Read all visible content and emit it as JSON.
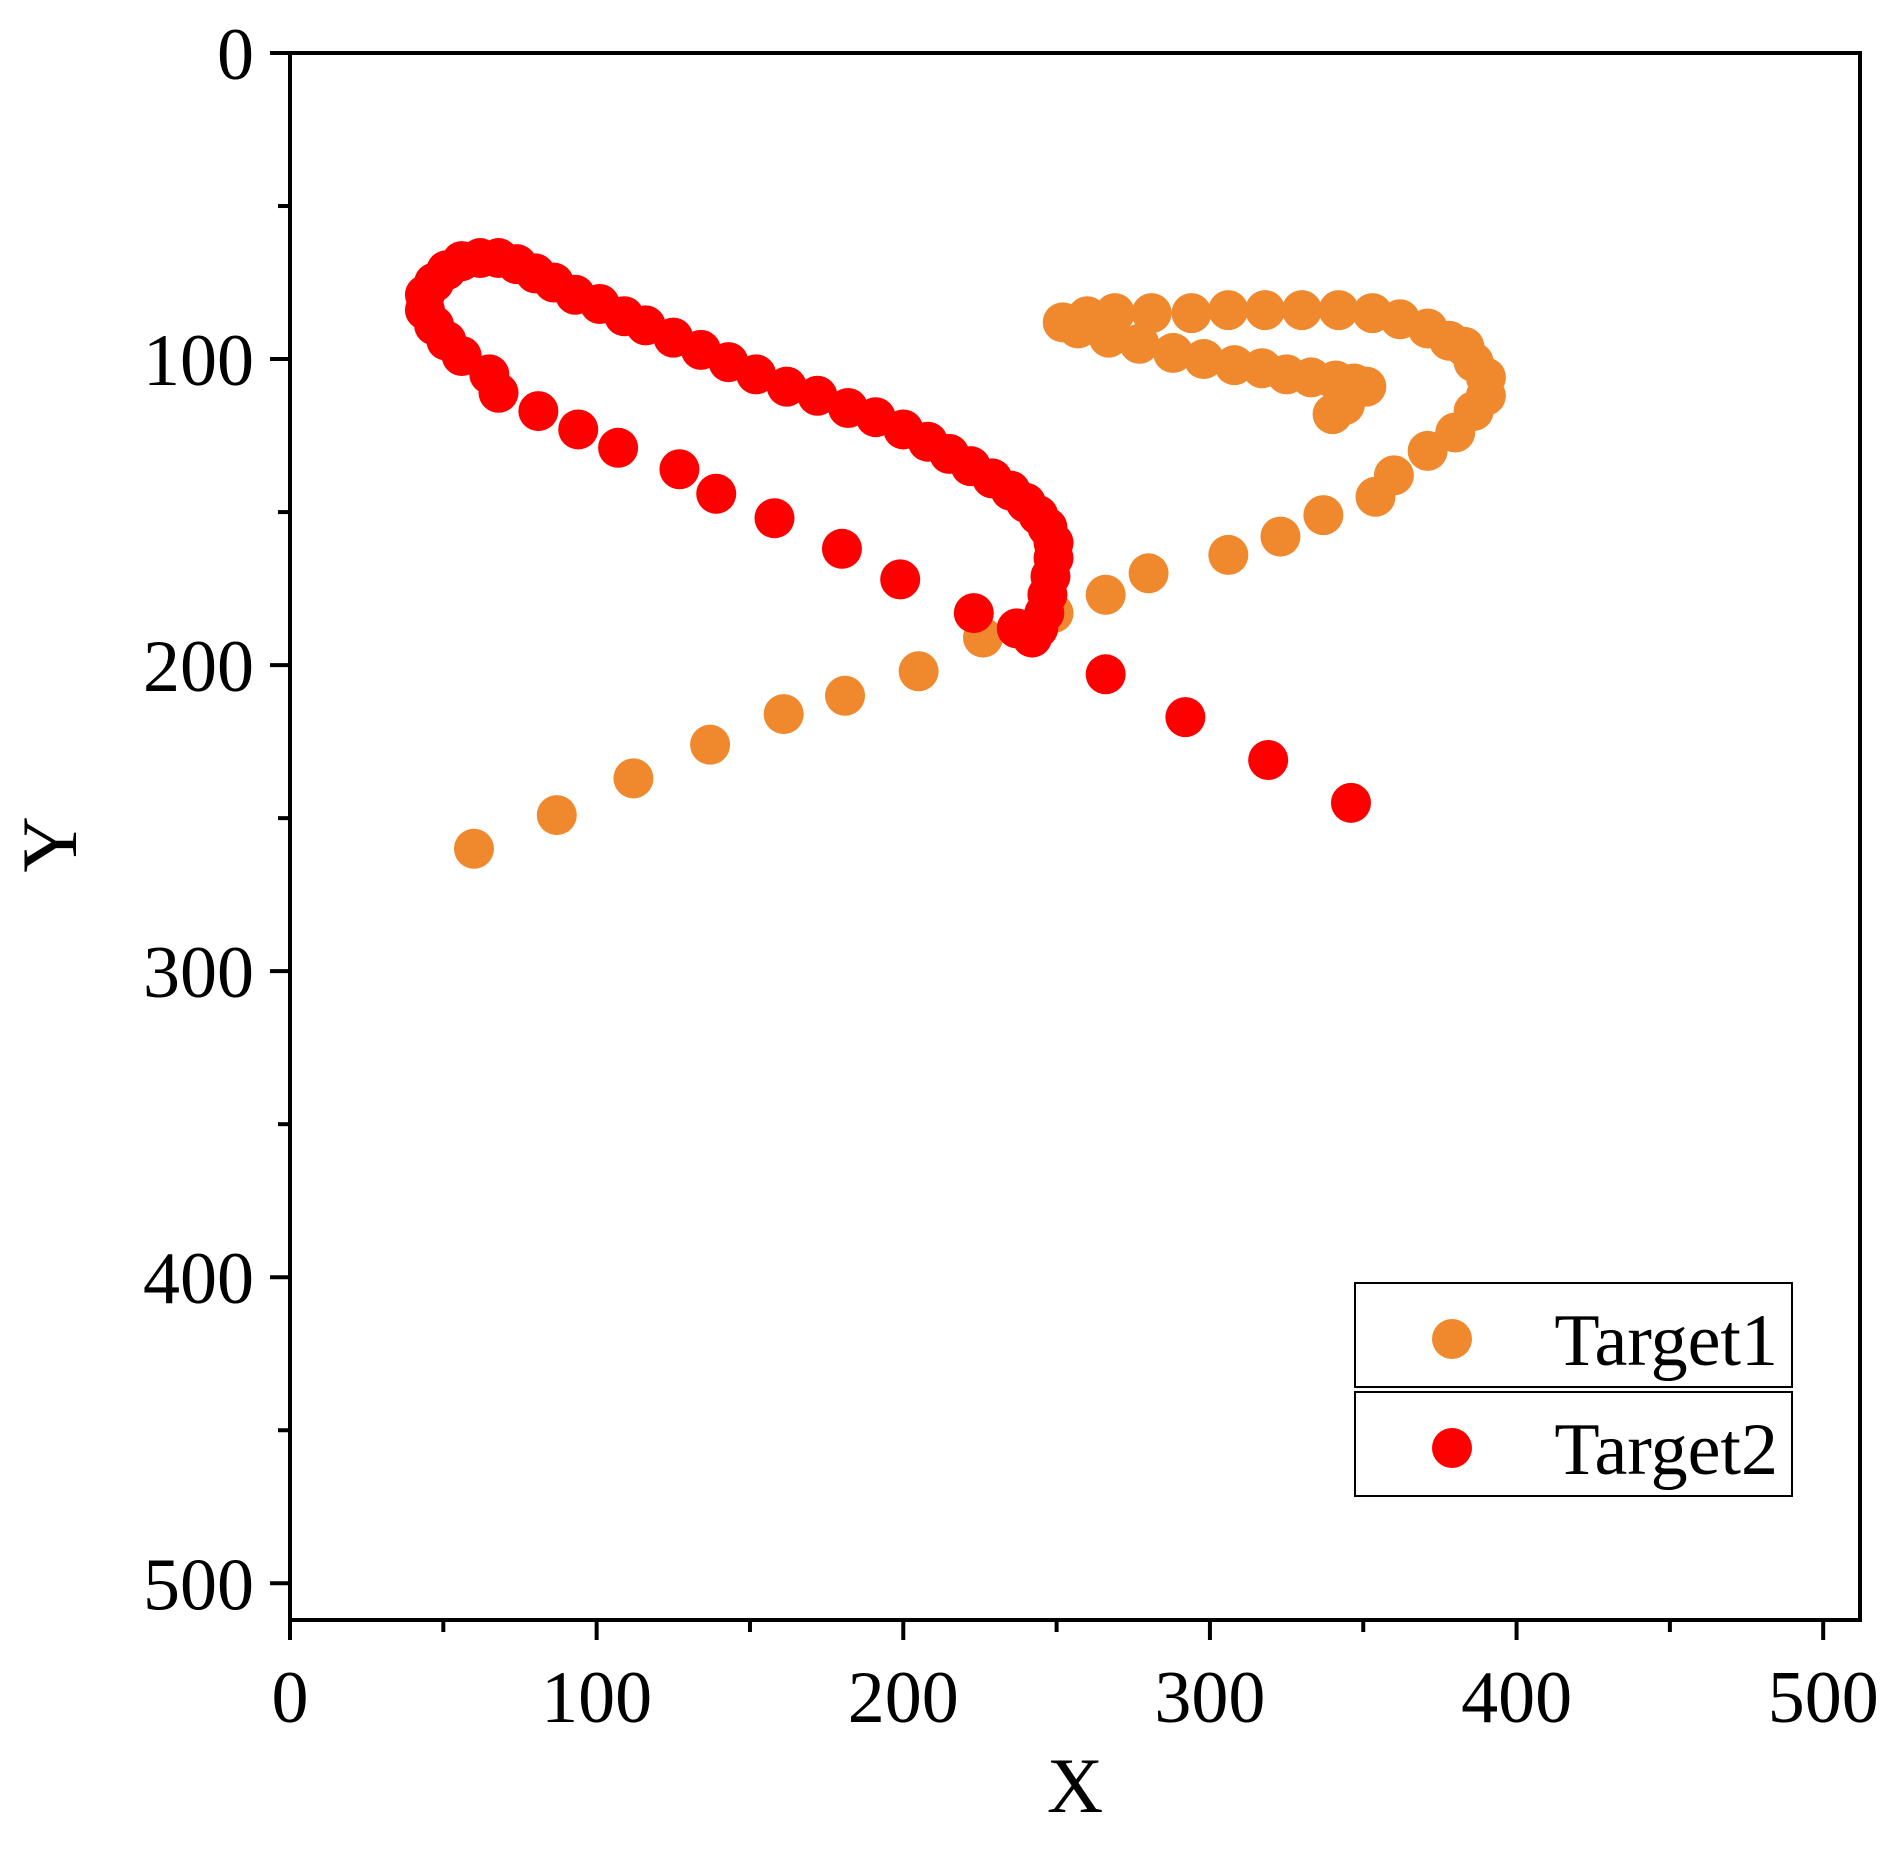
{
  "chart_data": {
    "type": "scatter",
    "xlabel": "X",
    "ylabel": "Y",
    "xlim": [
      0,
      512
    ],
    "ylim": [
      0,
      512
    ],
    "y_inverted": true,
    "x_ticks": [
      0,
      100,
      200,
      300,
      400,
      500
    ],
    "y_ticks": [
      0,
      100,
      200,
      300,
      400,
      500
    ],
    "grid": false,
    "legend_position": "bottom-right",
    "series": [
      {
        "name": "Target1",
        "color": "#F0882E",
        "points": [
          [
            60,
            260
          ],
          [
            87,
            249
          ],
          [
            112,
            237
          ],
          [
            137,
            226
          ],
          [
            161,
            216
          ],
          [
            181,
            210
          ],
          [
            205,
            202
          ],
          [
            226,
            191
          ],
          [
            249,
            183
          ],
          [
            266,
            177
          ],
          [
            280,
            170
          ],
          [
            306,
            164
          ],
          [
            323,
            158
          ],
          [
            337,
            151
          ],
          [
            354,
            145
          ],
          [
            360,
            138
          ],
          [
            371,
            130
          ],
          [
            380,
            124
          ],
          [
            386,
            117
          ],
          [
            390,
            112
          ],
          [
            390,
            106
          ],
          [
            386,
            101
          ],
          [
            383,
            96
          ],
          [
            378,
            94
          ],
          [
            371,
            90
          ],
          [
            362,
            87
          ],
          [
            353,
            85
          ],
          [
            342,
            84
          ],
          [
            330,
            84
          ],
          [
            318,
            84
          ],
          [
            306,
            84
          ],
          [
            294,
            85
          ],
          [
            281,
            85
          ],
          [
            269,
            85
          ],
          [
            260,
            86
          ],
          [
            252,
            88
          ],
          [
            257,
            90
          ],
          [
            267,
            93
          ],
          [
            277,
            95
          ],
          [
            288,
            98
          ],
          [
            298,
            100
          ],
          [
            308,
            102
          ],
          [
            317,
            103
          ],
          [
            325,
            105
          ],
          [
            333,
            106
          ],
          [
            341,
            107
          ],
          [
            347,
            108
          ],
          [
            351,
            109
          ],
          [
            344,
            115
          ],
          [
            340,
            118
          ]
        ]
      },
      {
        "name": "Target2",
        "color": "#FE0000",
        "points": [
          [
            346,
            245
          ],
          [
            319,
            231
          ],
          [
            292,
            217
          ],
          [
            266,
            203
          ],
          [
            242,
            191
          ],
          [
            237,
            188
          ],
          [
            223,
            183
          ],
          [
            199,
            172
          ],
          [
            180,
            162
          ],
          [
            158,
            152
          ],
          [
            139,
            144
          ],
          [
            127,
            136
          ],
          [
            107,
            129
          ],
          [
            94,
            123
          ],
          [
            81,
            117
          ],
          [
            68,
            111
          ],
          [
            65,
            105
          ],
          [
            56,
            99
          ],
          [
            51,
            94
          ],
          [
            47,
            89
          ],
          [
            44,
            84
          ],
          [
            44,
            79
          ],
          [
            47,
            75
          ],
          [
            51,
            71
          ],
          [
            56,
            68
          ],
          [
            62,
            67
          ],
          [
            68,
            67
          ],
          [
            74,
            69
          ],
          [
            80,
            72
          ],
          [
            86,
            75
          ],
          [
            93,
            79
          ],
          [
            101,
            82
          ],
          [
            109,
            86
          ],
          [
            116,
            89
          ],
          [
            125,
            93
          ],
          [
            134,
            97
          ],
          [
            143,
            101
          ],
          [
            152,
            105
          ],
          [
            162,
            109
          ],
          [
            172,
            112
          ],
          [
            182,
            116
          ],
          [
            191,
            119
          ],
          [
            200,
            123
          ],
          [
            208,
            127
          ],
          [
            215,
            131
          ],
          [
            222,
            135
          ],
          [
            229,
            139
          ],
          [
            235,
            143
          ],
          [
            240,
            147
          ],
          [
            244,
            151
          ],
          [
            247,
            155
          ],
          [
            249,
            160
          ],
          [
            249,
            165
          ],
          [
            248,
            171
          ],
          [
            247,
            177
          ],
          [
            246,
            183
          ],
          [
            244,
            188
          ]
        ]
      }
    ]
  }
}
